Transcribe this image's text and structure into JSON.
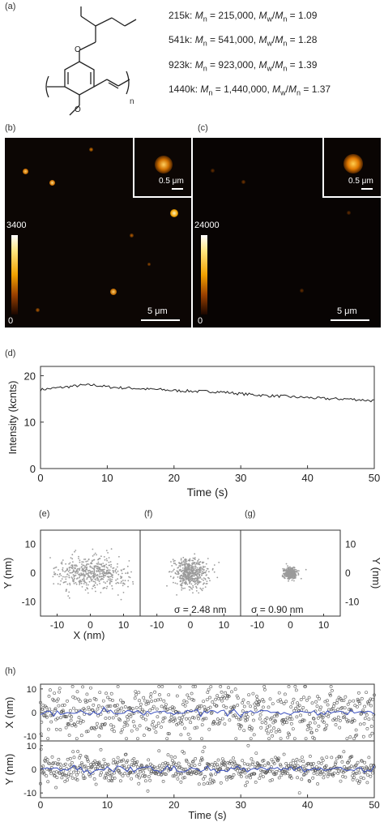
{
  "panel_labels": {
    "a": "(a)",
    "b": "(b)",
    "c": "(c)",
    "d": "(d)",
    "e": "(e)",
    "f": "(f)",
    "g": "(g)",
    "h": "(h)"
  },
  "structure": {
    "subscript_n": "n"
  },
  "molecular_weights": [
    {
      "label": "215k",
      "mn": "215,000",
      "pdi": "1.09"
    },
    {
      "label": "541k",
      "mn": "541,000",
      "pdi": "1.28"
    },
    {
      "label": "923k",
      "mn": "923,000",
      "pdi": "1.39"
    },
    {
      "label": "1440k",
      "mn": "1,440,000",
      "pdi": "1.37"
    }
  ],
  "image_b": {
    "cbar_max": "3400",
    "cbar_min": "0",
    "scale": "5 μm",
    "inset_scale": "0.5 μm"
  },
  "image_c": {
    "cbar_max": "24000",
    "cbar_min": "0",
    "scale": "5 μm",
    "inset_scale": "0.5 μm"
  },
  "chart_data": [
    {
      "type": "line",
      "panel": "(d)",
      "xlabel": "Time (s)",
      "ylabel": "Intensity (kcnts)",
      "xlim": [
        0,
        50
      ],
      "ylim": [
        0,
        22
      ],
      "xticks": [
        "0",
        "10",
        "20",
        "30",
        "40",
        "50"
      ],
      "yticks": [
        "0",
        "10",
        "20"
      ],
      "series": [
        {
          "x": [
            0,
            2,
            4,
            6,
            8,
            10,
            12,
            14,
            16,
            18,
            20,
            22,
            24,
            26,
            28,
            30,
            32,
            34,
            36,
            38,
            40,
            42,
            44,
            46,
            48,
            50
          ],
          "values": [
            17,
            17.3,
            17.6,
            17.9,
            18.0,
            17.6,
            17.4,
            17.3,
            17.1,
            17.0,
            16.8,
            16.7,
            16.6,
            16.6,
            16.4,
            16.1,
            15.9,
            15.7,
            15.6,
            15.4,
            15.3,
            15.1,
            15.0,
            15.0,
            14.8,
            14.6
          ]
        }
      ]
    },
    {
      "type": "scatter",
      "panel": "(e)",
      "xlabel": "X (nm)",
      "ylabel": "Y (nm)",
      "xlim": [
        -15,
        15
      ],
      "ylim": [
        -15,
        15
      ],
      "xticks": [
        "-10",
        "0",
        "10"
      ],
      "yticks": [
        "10",
        "0",
        "-10"
      ],
      "spread": {
        "sx": 5.5,
        "sy": 2.8
      }
    },
    {
      "type": "scatter",
      "panel": "(f)",
      "xlim": [
        -15,
        15
      ],
      "ylim": [
        -15,
        15
      ],
      "xticks": [
        "-10",
        "0",
        "10"
      ],
      "annotation": "σ = 2.48 nm",
      "spread": {
        "sx": 2.48,
        "sy": 2.48
      }
    },
    {
      "type": "scatter",
      "panel": "(g)",
      "ylabel": "Y (nm)",
      "xlim": [
        -15,
        15
      ],
      "ylim": [
        -15,
        15
      ],
      "xticks": [
        "-10",
        "0",
        "10"
      ],
      "yticks": [
        "10",
        "0",
        "-10"
      ],
      "annotation": "σ = 0.90 nm",
      "spread": {
        "sx": 0.9,
        "sy": 0.9
      }
    },
    {
      "type": "scatter",
      "panel": "(h)",
      "xlabel": "Time (s)",
      "xlim": [
        0,
        50
      ],
      "xticks": [
        "0",
        "10",
        "20",
        "30",
        "40",
        "50"
      ],
      "series": [
        {
          "ylabel": "X (nm)",
          "ylim": [
            -12,
            12
          ],
          "yticks": [
            "10",
            "0",
            "-10"
          ],
          "spread": 5.5
        },
        {
          "ylabel": "Y (nm)",
          "ylim": [
            -12,
            12
          ],
          "yticks": [
            "10",
            "0",
            "-10"
          ],
          "spread": 2.8
        }
      ]
    }
  ]
}
